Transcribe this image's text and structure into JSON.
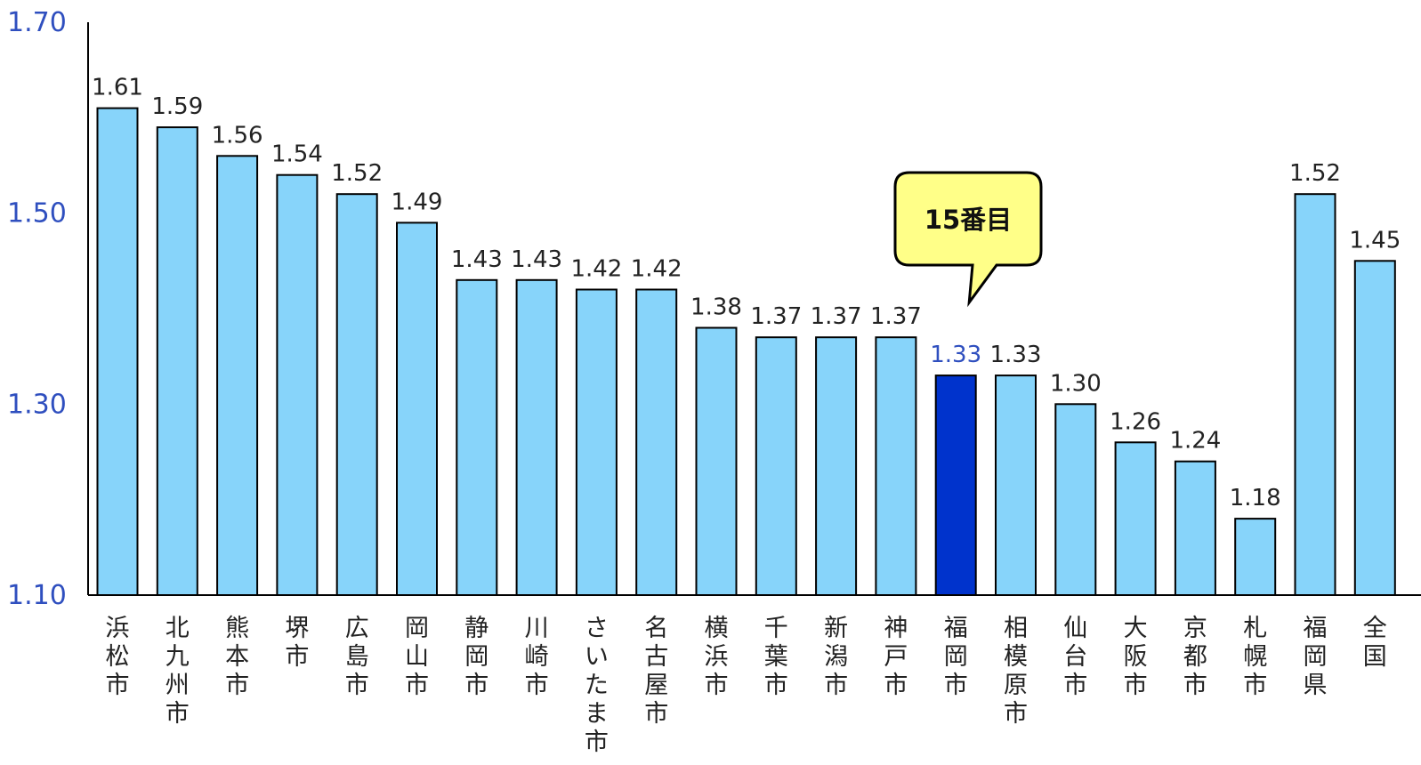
{
  "chart_data": {
    "type": "bar",
    "title": "",
    "xlabel": "",
    "ylabel": "",
    "ylim": [
      1.1,
      1.7
    ],
    "yticks": [
      "1.70",
      "1.50",
      "1.30",
      "1.10"
    ],
    "categories": [
      "浜松市",
      "北九州市",
      "熊本市",
      "堺市",
      "広島市",
      "岡山市",
      "静岡市",
      "川崎市",
      "さいたま市",
      "名古屋市",
      "横浜市",
      "千葉市",
      "新潟市",
      "神戸市",
      "福岡市",
      "相模原市",
      "仙台市",
      "大阪市",
      "京都市",
      "札幌市",
      "福岡県",
      "全国"
    ],
    "values": [
      1.61,
      1.59,
      1.56,
      1.54,
      1.52,
      1.49,
      1.43,
      1.43,
      1.42,
      1.42,
      1.38,
      1.37,
      1.37,
      1.37,
      1.33,
      1.33,
      1.3,
      1.26,
      1.24,
      1.18,
      1.52,
      1.45
    ],
    "value_labels": [
      "1.61",
      "1.59",
      "1.56",
      "1.54",
      "1.52",
      "1.49",
      "1.43",
      "1.43",
      "1.42",
      "1.42",
      "1.38",
      "1.37",
      "1.37",
      "1.37",
      "1.33",
      "1.33",
      "1.30",
      "1.26",
      "1.24",
      "1.18",
      "1.52",
      "1.45"
    ],
    "highlight_index": 14,
    "grid": false,
    "legend": "none",
    "colors": {
      "bar": "#87d4fa",
      "highlight": "#0033cc",
      "bar_stroke": "#000000",
      "axis": "#000000",
      "tick_text": "#2f4fbf",
      "callout_fill": "#ffff88"
    },
    "annotation": {
      "text": "15番目",
      "target_index": 14
    }
  }
}
